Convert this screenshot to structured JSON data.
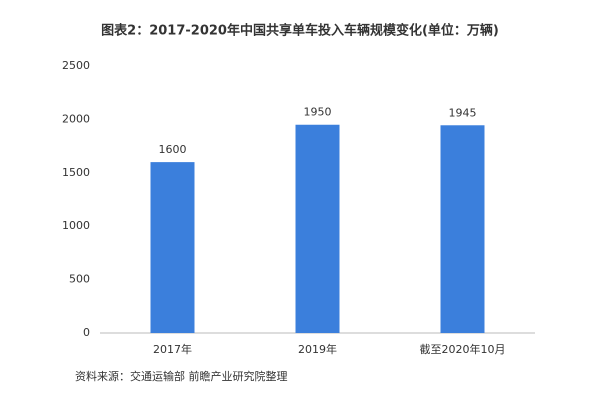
{
  "chart_data": {
    "type": "bar",
    "title": "图表2：2017-2020年中国共享单车投入车辆规模变化(单位：万辆)",
    "categories": [
      "2017年",
      "2019年",
      "截至2020年10月"
    ],
    "values": [
      1600,
      1950,
      1945
    ],
    "color": "#3b7fdc",
    "ylim": [
      0,
      2500
    ],
    "yticks": [
      0,
      500,
      1000,
      1500,
      2000,
      2500
    ],
    "grid": false,
    "source": "资料来源：交通运输部 前瞻产业研究院整理"
  }
}
